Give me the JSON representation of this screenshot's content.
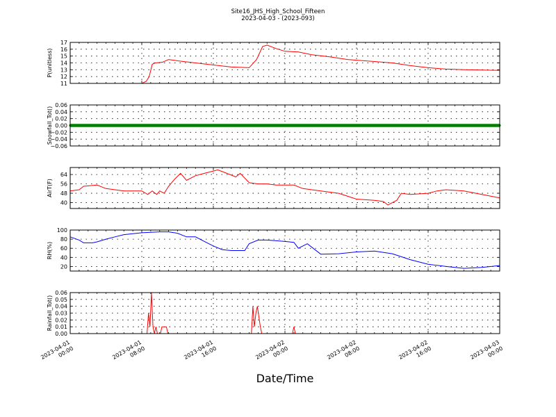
{
  "figure": {
    "title": "Site16_JHS_High_School_Fifteen",
    "subtitle": "2023-04-03 - (2023-093)",
    "xlabel": "Date/Time",
    "x_range": [
      "2023-04-01 00:00",
      "2023-04-03 00:00"
    ],
    "x_ticks": [
      {
        "t": "2023-04-01 00:00",
        "line1": "2023-04-01",
        "line2": "00:00"
      },
      {
        "t": "2023-04-01 08:00",
        "line1": "2023-04-01",
        "line2": "08:00"
      },
      {
        "t": "2023-04-01 16:00",
        "line1": "2023-04-01",
        "line2": "16:00"
      },
      {
        "t": "2023-04-02 00:00",
        "line1": "2023-04-02",
        "line2": "00:00"
      },
      {
        "t": "2023-04-02 08:00",
        "line1": "2023-04-02",
        "line2": "08:00"
      },
      {
        "t": "2023-04-02 16:00",
        "line1": "2023-04-02",
        "line2": "16:00"
      },
      {
        "t": "2023-04-03 00:00",
        "line1": "2023-04-03",
        "line2": "00:00"
      }
    ]
  },
  "chart_data": [
    {
      "type": "line",
      "ylabel": "P(unitless)",
      "ylim": [
        11,
        17
      ],
      "yticks": [
        "11",
        "12",
        "13",
        "14",
        "15",
        "16",
        "17"
      ],
      "grid": true,
      "color": "#ff0000",
      "marker": "none",
      "x": [
        "2023-04-01 00:00",
        "2023-04-01 06:00",
        "2023-04-01 08:00",
        "2023-04-01 08:30",
        "2023-04-01 08:50",
        "2023-04-01 09:10",
        "2023-04-01 09:30",
        "2023-04-01 10:20",
        "2023-04-01 11:00",
        "2023-04-01 12:00",
        "2023-04-01 14:00",
        "2023-04-01 16:00",
        "2023-04-01 18:00",
        "2023-04-01 20:00",
        "2023-04-01 20:50",
        "2023-04-01 21:30",
        "2023-04-01 22:00",
        "2023-04-01 23:00",
        "2023-04-02 00:00",
        "2023-04-02 01:30",
        "2023-04-02 03:00",
        "2023-04-02 05:00",
        "2023-04-02 07:00",
        "2023-04-02 08:00",
        "2023-04-02 10:00",
        "2023-04-02 12:00",
        "2023-04-02 14:00",
        "2023-04-02 16:00",
        "2023-04-02 18:00",
        "2023-04-02 20:00",
        "2023-04-02 22:00",
        "2023-04-03 00:00"
      ],
      "y": [
        11,
        11,
        11,
        11.3,
        12,
        13.8,
        14.0,
        14.1,
        14.5,
        14.3,
        14.0,
        13.7,
        13.4,
        13.3,
        14.5,
        16.4,
        16.6,
        16.1,
        15.7,
        15.6,
        15.2,
        14.9,
        14.5,
        14.4,
        14.2,
        14.0,
        13.6,
        13.3,
        13.1,
        13.0,
        12.95,
        12.9
      ]
    },
    {
      "type": "line",
      "ylabel": "Snowfall_Tot()",
      "ylim": [
        -0.06,
        0.06
      ],
      "yticks": [
        "−0.06",
        "−0.04",
        "−0.02",
        "0.00",
        "0.02",
        "0.04",
        "0.06"
      ],
      "grid": true,
      "color": "#008000",
      "marker": "dots",
      "x": [
        "2023-04-01 00:00",
        "2023-04-03 00:00"
      ],
      "y": [
        0,
        0
      ]
    },
    {
      "type": "line",
      "ylabel": "AirT(F)",
      "ylim": [
        35,
        70
      ],
      "yticks": [
        "40",
        "48",
        "56",
        "64"
      ],
      "ytick_values": [
        40,
        48,
        56,
        64
      ],
      "grid": true,
      "color": "#ff0000",
      "marker": "none",
      "x": [
        "2023-04-01 00:00",
        "2023-04-01 01:00",
        "2023-04-01 01:30",
        "2023-04-01 03:00",
        "2023-04-01 04:00",
        "2023-04-01 06:00",
        "2023-04-01 08:00",
        "2023-04-01 08:40",
        "2023-04-01 09:10",
        "2023-04-01 09:40",
        "2023-04-01 10:00",
        "2023-04-01 10:30",
        "2023-04-01 11:00",
        "2023-04-01 11:40",
        "2023-04-01 12:20",
        "2023-04-01 13:00",
        "2023-04-01 14:00",
        "2023-04-01 15:00",
        "2023-04-01 16:00",
        "2023-04-01 16:30",
        "2023-04-01 17:30",
        "2023-04-01 18:30",
        "2023-04-01 19:00",
        "2023-04-01 20:00",
        "2023-04-01 21:00",
        "2023-04-01 22:00",
        "2023-04-01 23:00",
        "2023-04-02 00:00",
        "2023-04-02 01:00",
        "2023-04-02 02:00",
        "2023-04-02 04:00",
        "2023-04-02 06:00",
        "2023-04-02 08:00",
        "2023-04-02 10:00",
        "2023-04-02 11:00",
        "2023-04-02 11:30",
        "2023-04-02 12:30",
        "2023-04-02 13:00",
        "2023-04-02 14:00",
        "2023-04-02 16:00",
        "2023-04-02 17:00",
        "2023-04-02 18:00",
        "2023-04-02 20:00",
        "2023-04-02 22:00",
        "2023-04-03 00:00"
      ],
      "y": [
        50,
        51,
        54,
        55,
        52,
        50,
        50,
        47,
        50,
        47,
        50,
        48,
        54,
        60,
        65,
        59,
        63,
        65,
        67,
        68,
        65,
        62,
        65,
        57,
        56,
        56,
        55,
        55,
        55,
        52,
        50,
        48,
        43,
        42,
        41,
        38,
        42,
        48,
        47,
        48,
        50,
        51,
        50,
        47,
        44
      ]
    },
    {
      "type": "line",
      "ylabel": "RH(%)",
      "ylim": [
        10,
        100
      ],
      "yticks": [
        "20",
        "40",
        "60",
        "80",
        "100"
      ],
      "ytick_values": [
        20,
        40,
        60,
        80,
        100
      ],
      "grid": true,
      "color": "#0000ff",
      "marker": "none",
      "x": [
        "2023-04-01 00:00",
        "2023-04-01 01:00",
        "2023-04-01 01:30",
        "2023-04-01 02:30",
        "2023-04-01 03:00",
        "2023-04-01 04:00",
        "2023-04-01 05:00",
        "2023-04-01 06:00",
        "2023-04-01 08:00",
        "2023-04-01 10:00",
        "2023-04-01 11:00",
        "2023-04-01 12:00",
        "2023-04-01 13:00",
        "2023-04-01 14:00",
        "2023-04-01 15:00",
        "2023-04-01 16:00",
        "2023-04-01 17:00",
        "2023-04-01 18:00",
        "2023-04-01 19:00",
        "2023-04-01 19:30",
        "2023-04-01 20:00",
        "2023-04-01 21:00",
        "2023-04-01 22:00",
        "2023-04-02 00:00",
        "2023-04-02 01:00",
        "2023-04-02 01:30",
        "2023-04-02 02:00",
        "2023-04-02 02:30",
        "2023-04-02 04:00",
        "2023-04-02 06:00",
        "2023-04-02 08:00",
        "2023-04-02 10:00",
        "2023-04-02 12:00",
        "2023-04-02 14:00",
        "2023-04-02 16:00",
        "2023-04-02 18:00",
        "2023-04-02 20:00",
        "2023-04-02 22:00",
        "2023-04-03 00:00"
      ],
      "y": [
        85,
        78,
        72,
        72,
        74,
        80,
        85,
        90,
        94,
        96,
        96,
        93,
        85,
        85,
        75,
        65,
        57,
        55,
        55,
        55,
        70,
        78,
        78,
        75,
        73,
        60,
        65,
        70,
        47,
        48,
        52,
        54,
        48,
        35,
        25,
        20,
        16,
        18,
        22
      ]
    },
    {
      "type": "line",
      "ylabel": "Rainfall_Tot()",
      "ylim": [
        0,
        0.06
      ],
      "yticks": [
        "0.00",
        "0.01",
        "0.02",
        "0.03",
        "0.04",
        "0.05",
        "0.06"
      ],
      "grid": true,
      "color": "#ff0000",
      "marker": "none",
      "x": [
        "2023-04-01 00:00",
        "2023-04-01 08:35",
        "2023-04-01 08:45",
        "2023-04-01 08:55",
        "2023-04-01 09:05",
        "2023-04-01 09:15",
        "2023-04-01 09:25",
        "2023-04-01 09:35",
        "2023-04-01 09:45",
        "2023-04-01 10:05",
        "2023-04-01 10:15",
        "2023-04-01 10:45",
        "2023-04-01 10:55",
        "2023-04-01 20:15",
        "2023-04-01 20:25",
        "2023-04-01 20:35",
        "2023-04-01 20:45",
        "2023-04-01 20:55",
        "2023-04-01 21:15",
        "2023-04-01 21:25",
        "2023-04-02 00:50",
        "2023-04-02 01:00",
        "2023-04-02 01:10",
        "2023-04-03 00:00"
      ],
      "y": [
        0,
        0,
        0.03,
        0.01,
        0.06,
        0.01,
        0,
        0.01,
        0,
        0,
        0.01,
        0.01,
        0,
        0,
        0.04,
        0.01,
        0.03,
        0.04,
        0.01,
        0,
        0,
        0.01,
        0,
        0
      ]
    }
  ]
}
